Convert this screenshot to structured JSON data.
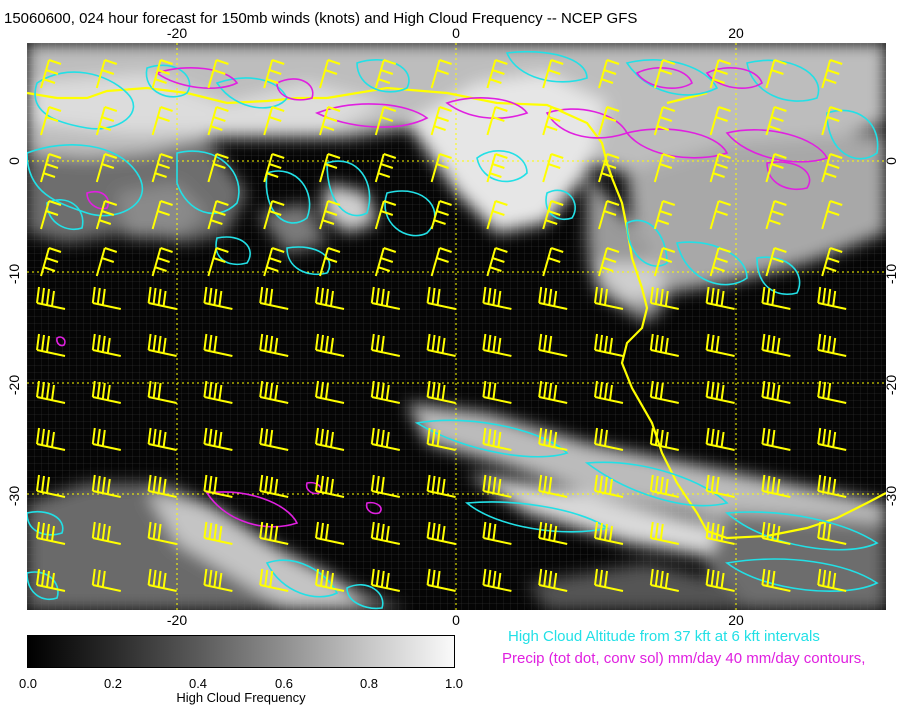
{
  "title": "15060600, 024 hour forecast for 150mb winds (knots) and High Cloud Frequency -- NCEP GFS",
  "lon_ticks_top": [
    {
      "label": "-20",
      "lon": -20
    },
    {
      "label": "0",
      "lon": 0
    },
    {
      "label": "20",
      "lon": 20
    }
  ],
  "lon_ticks_bottom": [
    {
      "label": "-20",
      "lon": -20
    },
    {
      "label": "0",
      "lon": 0
    },
    {
      "label": "20",
      "lon": 20
    }
  ],
  "lat_ticks": [
    {
      "label": "0",
      "lat": 0
    },
    {
      "label": "-10",
      "lat": -10
    },
    {
      "label": "-20",
      "lat": -20
    },
    {
      "label": "-30",
      "lat": -30
    }
  ],
  "map_extent": {
    "lon_min": -30.5,
    "lon_max": 30.5,
    "lat_min": -39.5,
    "lat_max": 8.5
  },
  "colorbar": {
    "label": "High Cloud Frequency",
    "ticks": [
      "0.0",
      "0.2",
      "0.4",
      "0.6",
      "0.8",
      "1.0"
    ]
  },
  "notes": {
    "cloud_altitude": "High Cloud Altitude from 37 kft at 6 kft intervals",
    "precip": "Precip (tot dot, conv sol) mm/day 40 mm/day contours,"
  },
  "colors": {
    "wind_barbs": "#ffff00",
    "cloud_altitude_contours": "#22e0e6",
    "precip_contours": "#e020e0",
    "coastline": "#ffff00",
    "grid": "#ffff00"
  }
}
